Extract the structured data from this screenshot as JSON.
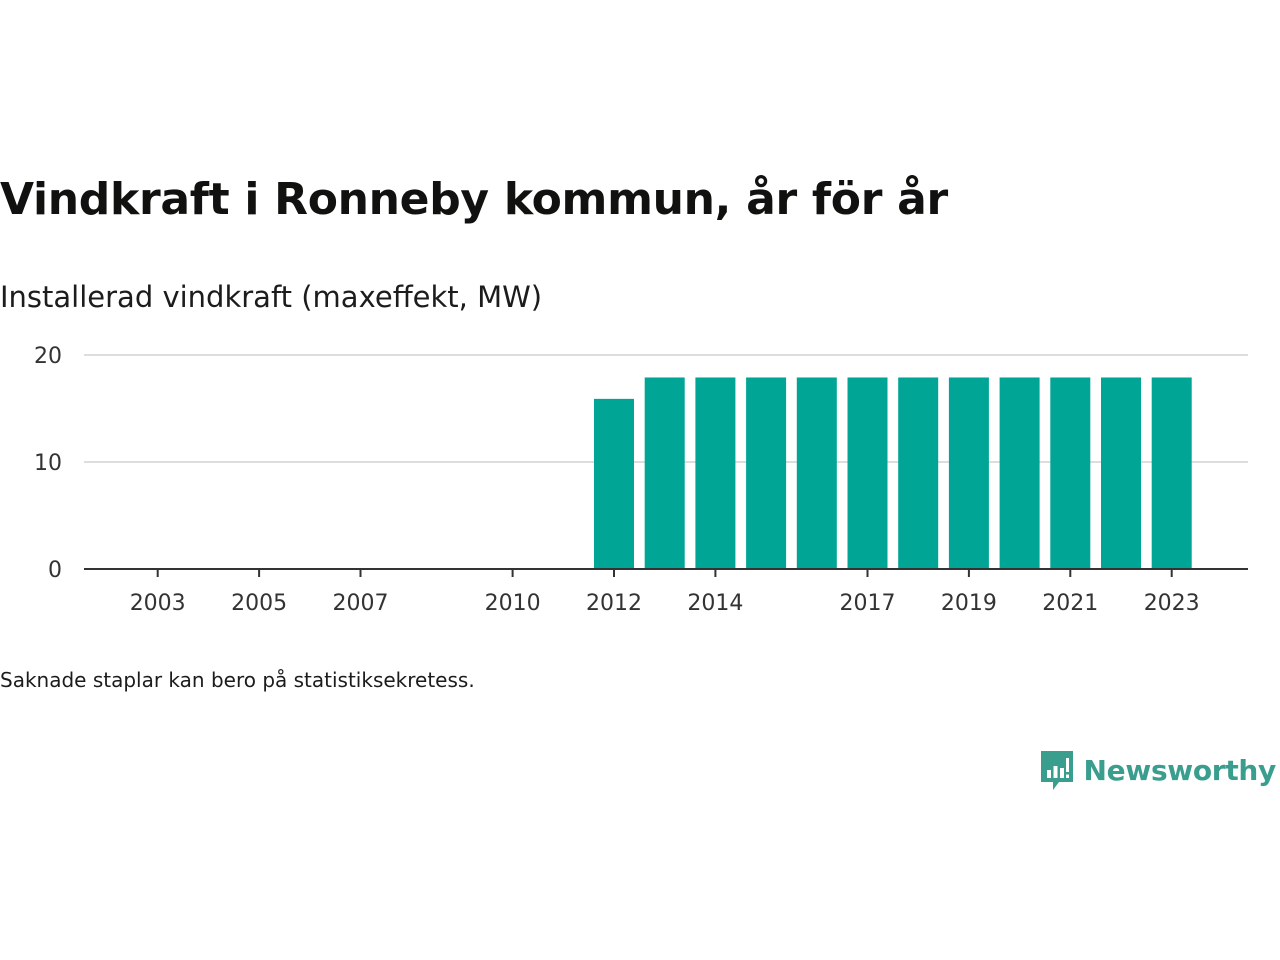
{
  "header": {
    "title": "Vindkraft i Ronneby kommun, år för år",
    "subtitle": "Installerad vindkraft (maxeffekt, MW)"
  },
  "footer": {
    "note": "Saknade staplar kan bero på statistiksekretess.",
    "brand": "Newsworthy"
  },
  "colors": {
    "bar": "#00a595",
    "grid": "#dddddd",
    "axis": "#333333",
    "brand": "#3a9e8f"
  },
  "chart_data": {
    "type": "bar",
    "title": "Vindkraft i Ronneby kommun, år för år",
    "ylabel": "Installerad vindkraft (maxeffekt, MW)",
    "xlabel": "",
    "x": [
      2002,
      2003,
      2004,
      2005,
      2006,
      2007,
      2008,
      2009,
      2010,
      2011,
      2012,
      2013,
      2014,
      2015,
      2016,
      2017,
      2018,
      2019,
      2020,
      2021,
      2022,
      2023
    ],
    "values": [
      0,
      0,
      0,
      0,
      0,
      0,
      0,
      0,
      0,
      0,
      15.9,
      17.9,
      17.9,
      17.9,
      17.9,
      17.9,
      17.9,
      17.9,
      17.9,
      17.9,
      17.9,
      17.9
    ],
    "x_ticks": [
      "2003",
      "2005",
      "2007",
      "2010",
      "2012",
      "2014",
      "2017",
      "2019",
      "2021",
      "2023"
    ],
    "y_ticks": [
      "0",
      "10",
      "20"
    ],
    "ylim": [
      0,
      20
    ],
    "grid": true,
    "legend": "none"
  }
}
